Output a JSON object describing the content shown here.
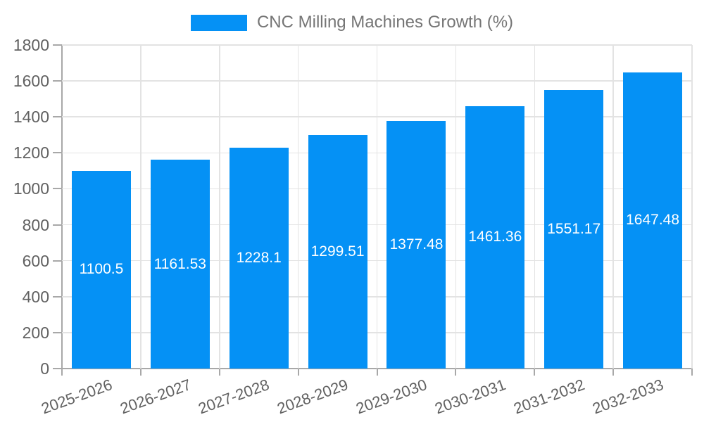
{
  "chart_data": {
    "type": "bar",
    "title": "CNC Milling Machines Growth (%)",
    "categories": [
      "2025-2026",
      "2026-2027",
      "2027-2028",
      "2028-2029",
      "2029-2030",
      "2030-2031",
      "2031-2032",
      "2032-2033"
    ],
    "values": [
      1100.5,
      1161.53,
      1228.1,
      1299.51,
      1377.48,
      1461.36,
      1551.17,
      1647.48
    ],
    "value_labels": [
      "1100.5",
      "1161.53",
      "1228.1",
      "1299.51",
      "1377.48",
      "1461.36",
      "1551.17",
      "1647.48"
    ],
    "xlabel": "",
    "ylabel": "",
    "ylim": [
      0,
      1800
    ],
    "yticks": [
      "0",
      "200",
      "400",
      "600",
      "800",
      "1000",
      "1200",
      "1400",
      "1600",
      "1800"
    ],
    "grid": true,
    "legend_position": "top-center",
    "value_label_position": "centered-inside-bar",
    "x_label_rotation_deg": -20,
    "colors": {
      "bar": "#0591f5",
      "value_label": "#ffffff",
      "axis_text": "#616161",
      "legend_text": "#757575",
      "grid_line": "#e3e3e3",
      "axis_line": "#a8a8a8",
      "background": "#ffffff"
    }
  }
}
